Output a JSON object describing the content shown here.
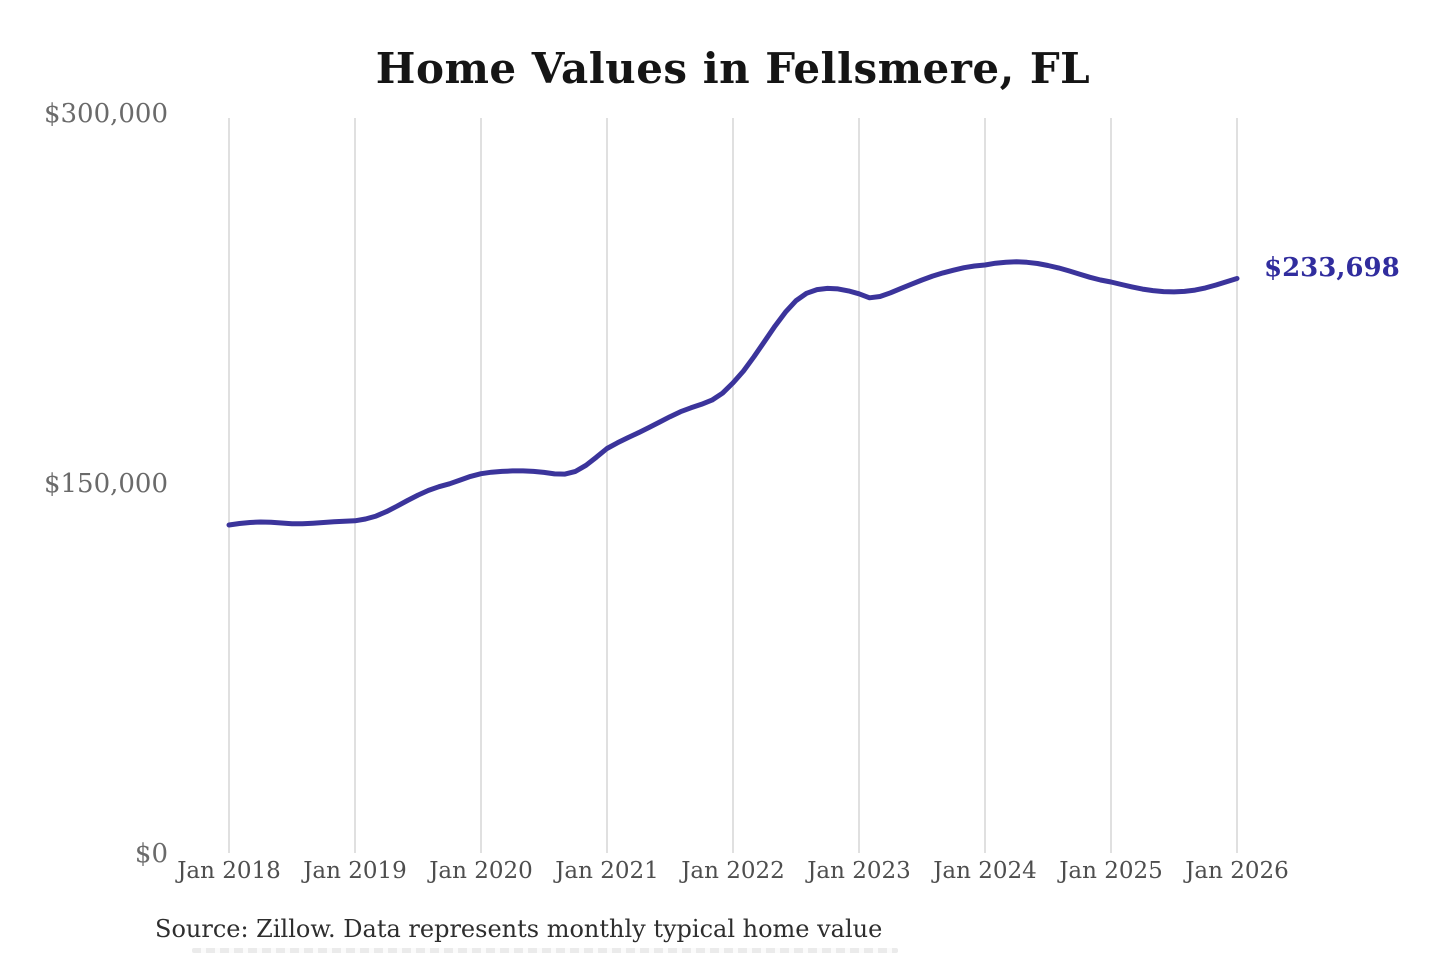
{
  "chart_data": {
    "type": "line",
    "title": "Home Values in Fellsmere, FL",
    "series_name": "Typical home value (USD)",
    "x_range": {
      "start": "Jan 2018",
      "end": "Jan 2026",
      "interval": "monthly"
    },
    "values": [
      133800,
      134400,
      134800,
      135000,
      134900,
      134600,
      134300,
      134300,
      134500,
      134800,
      135100,
      135300,
      135500,
      136200,
      137400,
      139200,
      141400,
      143700,
      145900,
      147800,
      149300,
      150500,
      152000,
      153500,
      154600,
      155200,
      155500,
      155700,
      155700,
      155500,
      155100,
      154500,
      154400,
      155500,
      158000,
      161300,
      164800,
      167100,
      169200,
      171200,
      173300,
      175500,
      177700,
      179700,
      181300,
      182700,
      184400,
      187200,
      191400,
      196200,
      202000,
      208200,
      214400,
      220100,
      224700,
      227700,
      229200,
      229700,
      229500,
      228700,
      227500,
      225900,
      226400,
      227900,
      229700,
      231400,
      233100,
      234700,
      236000,
      237100,
      238100,
      238800,
      239200,
      239900,
      240300,
      240500,
      240300,
      239800,
      239000,
      238000,
      236800,
      235500,
      234200,
      233100,
      232300,
      231300,
      230300,
      229400,
      228800,
      228400,
      228300,
      228500,
      229000,
      229900,
      231100,
      232400,
      233698
    ],
    "end_value": 233698,
    "end_label": "$233,698",
    "x_tick_labels": [
      "Jan 2018",
      "Jan 2019",
      "Jan 2020",
      "Jan 2021",
      "Jan 2022",
      "Jan 2023",
      "Jan 2024",
      "Jan 2025",
      "Jan 2026"
    ],
    "y_ticks": [
      {
        "label": "$300,000",
        "value": 300000
      },
      {
        "label": "$150,000",
        "value": 150000
      },
      {
        "label": "$0",
        "value": 0
      }
    ],
    "ylim": [
      0,
      300000
    ],
    "grid": "vertical-only",
    "legend_position": "none",
    "line_color": "#3b349b",
    "end_label_color": "#312d9e",
    "gridline_color": "#cfcfcf"
  },
  "footer": {
    "source_note": "Source: Zillow. Data represents monthly typical home value"
  }
}
